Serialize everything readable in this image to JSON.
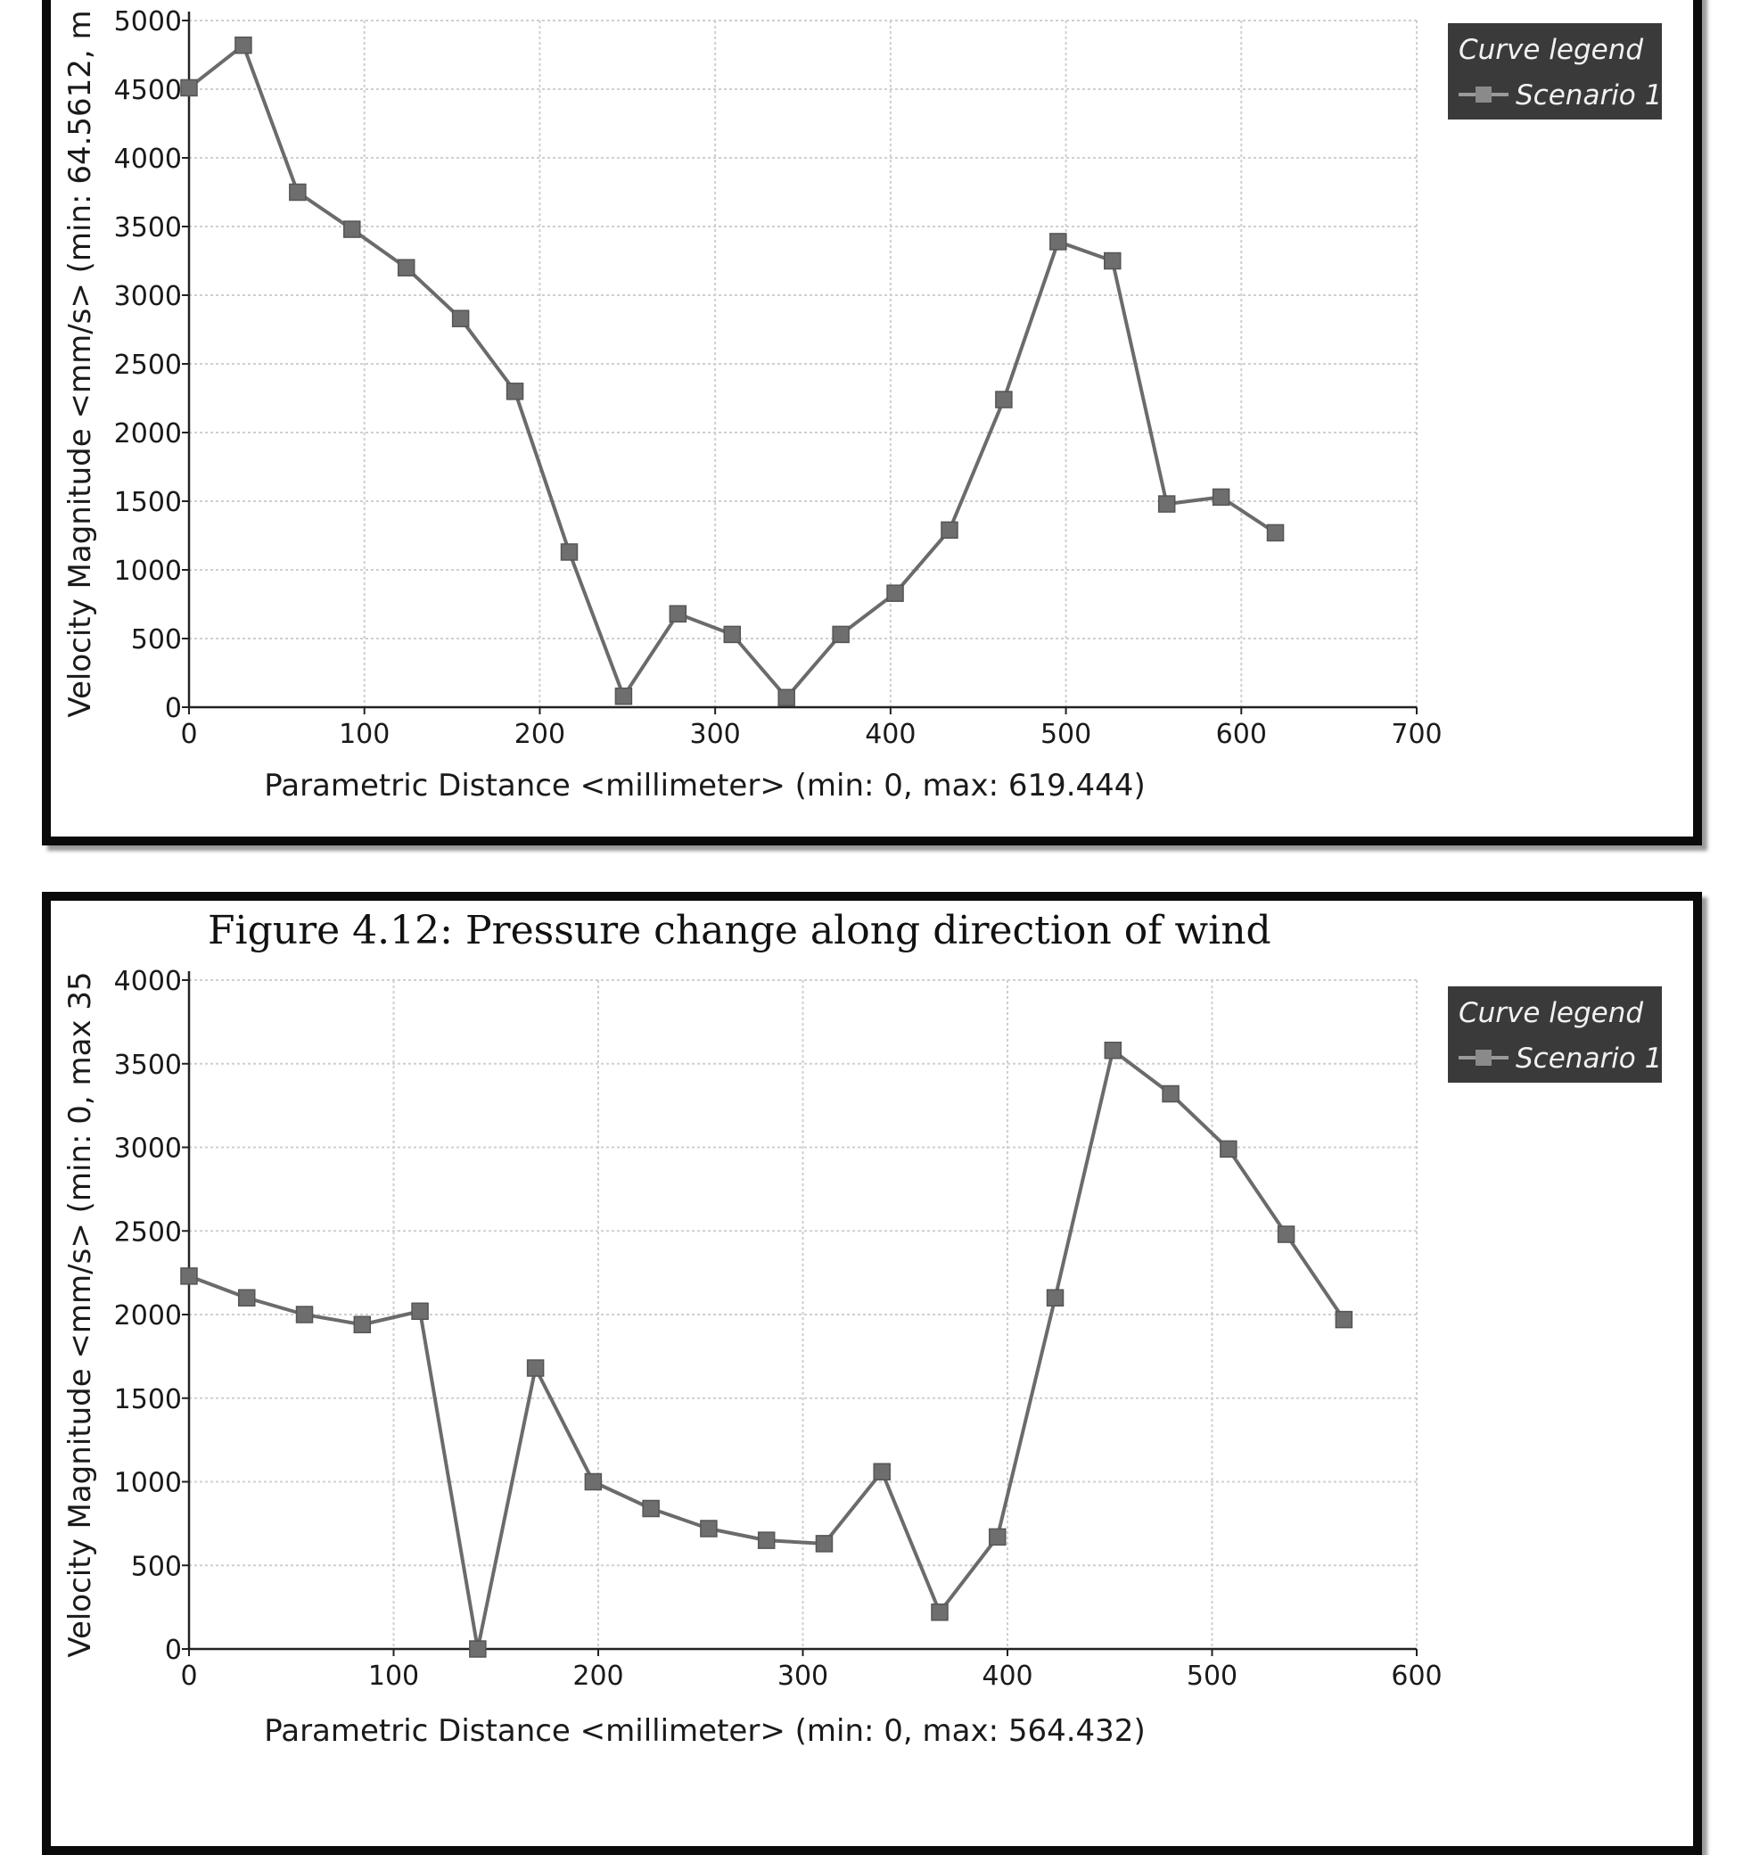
{
  "colors": {
    "line": "#6b6b6b",
    "marker": "#6e6e6e",
    "grid": "#cfcfcf",
    "legend_bg": "#3a3a3a",
    "legend_text": "#f2f2f2",
    "frame": "#0a0a0a"
  },
  "chart_data": [
    {
      "type": "line",
      "title": "",
      "xlabel": "Parametric Distance  <millimeter>  (min: 0, max: 619.444)",
      "ylabel": "Velocity Magnitude <mm/s>  (min: 64.5612, m",
      "xlim": [
        0,
        700
      ],
      "ylim": [
        0,
        5000
      ],
      "xticks": [
        "0",
        "100",
        "200",
        "300",
        "400",
        "500",
        "600",
        "700"
      ],
      "yticks": [
        "0",
        "500",
        "1000",
        "1500",
        "2000",
        "2500",
        "3000",
        "3500",
        "4000",
        "4500",
        "5000"
      ],
      "grid": true,
      "legend": {
        "title": "Curve legend",
        "entries": [
          "Scenario 1"
        ],
        "position": "top-right"
      },
      "series": [
        {
          "name": "Scenario 1",
          "x": [
            0,
            30.97,
            61.94,
            92.92,
            123.89,
            154.86,
            185.83,
            216.81,
            247.78,
            278.75,
            309.72,
            340.69,
            371.67,
            402.64,
            433.61,
            464.58,
            495.56,
            526.53,
            557.5,
            588.47,
            619.44
          ],
          "y": [
            4510,
            4820,
            3750,
            3480,
            3200,
            2830,
            2300,
            1130,
            80,
            680,
            530,
            70,
            530,
            830,
            1290,
            2240,
            3390,
            3250,
            1480,
            1530,
            1270
          ]
        }
      ]
    },
    {
      "type": "line",
      "title": "",
      "xlabel": "Parametric Distance  <millimeter>  (min: 0, max: 564.432)",
      "ylabel": "Velocity Magnitude <mm/s>  (min: 0, max 35",
      "xlim": [
        0,
        600
      ],
      "ylim": [
        0,
        4000
      ],
      "xticks": [
        "0",
        "100",
        "200",
        "300",
        "400",
        "500",
        "600"
      ],
      "yticks": [
        "0",
        "500",
        "1000",
        "1500",
        "2000",
        "2500",
        "3000",
        "3500",
        "4000"
      ],
      "grid": true,
      "legend": {
        "title": "Curve legend",
        "entries": [
          "Scenario 1"
        ],
        "position": "top-right"
      },
      "series": [
        {
          "name": "Scenario 1",
          "x": [
            0,
            28.22,
            56.44,
            84.66,
            112.89,
            141.11,
            169.33,
            197.55,
            225.77,
            253.99,
            282.22,
            310.44,
            338.66,
            366.88,
            395.1,
            423.32,
            451.55,
            479.77,
            507.99,
            536.21,
            564.43
          ],
          "y": [
            2230,
            2100,
            2000,
            1940,
            2020,
            0,
            1680,
            1000,
            840,
            720,
            650,
            630,
            1060,
            220,
            670,
            2100,
            3580,
            3320,
            2990,
            2480,
            1970
          ]
        }
      ]
    }
  ],
  "caption": "Figure 4.12: Pressure change along direction of wind"
}
